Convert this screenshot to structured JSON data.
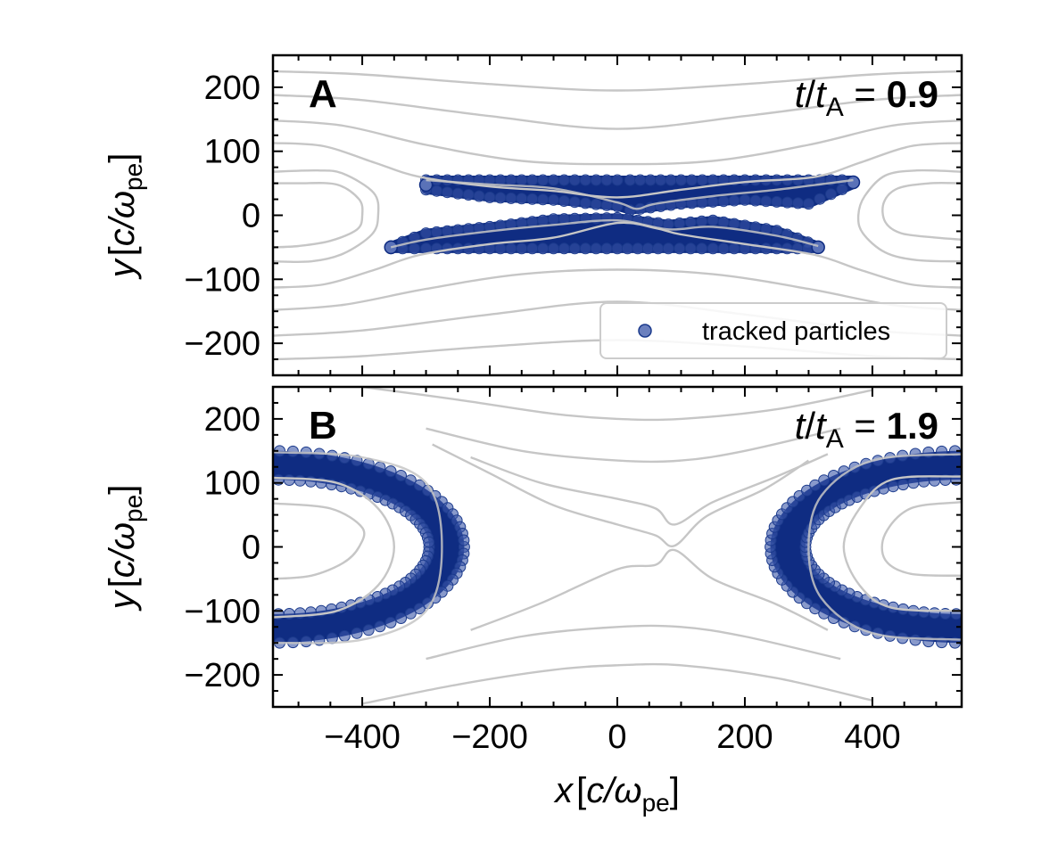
{
  "chart_data": [
    {
      "panel": "A",
      "type": "scatter",
      "xlim": [
        -540,
        540
      ],
      "ylim": [
        -250,
        250
      ],
      "xticks": [
        -400,
        -200,
        0,
        200,
        400
      ],
      "yticks": [
        200,
        100,
        0,
        -100,
        -200
      ],
      "ytick_labels": [
        "200",
        "100",
        "0",
        "−100",
        "−200"
      ],
      "show_x_tick_labels": false,
      "ylabel": {
        "var": "y",
        "open": "[",
        "num": "c/",
        "sym": "ω",
        "sub": "pe",
        "close": "]"
      },
      "time": {
        "t": "t",
        "slash": "/",
        "t2": "t",
        "sub": "A",
        "eq": " = ",
        "value": "0.9"
      },
      "legend": {
        "label": "tracked particles",
        "position": "lower right"
      },
      "series": [
        {
          "name": "tracked particles",
          "color": "#0f2c82",
          "bands": [
            {
              "x": [
                -300,
                -200,
                -100,
                0,
                20,
                100,
                200,
                300,
                370
              ],
              "y_top": [
                55,
                55,
                55,
                55,
                55,
                55,
                55,
                55,
                55
              ],
              "y_bottom": [
                40,
                28,
                24,
                14,
                8,
                18,
                24,
                18,
                48
              ]
            },
            {
              "x": [
                -355,
                -300,
                -200,
                -100,
                0,
                80,
                150,
                250,
                315
              ],
              "y_top": [
                -48,
                -28,
                -18,
                -6,
                -4,
                -14,
                -8,
                -24,
                -48
              ],
              "y_bottom": [
                -52,
                -52,
                -52,
                -52,
                -52,
                -52,
                -52,
                -52,
                -52
              ]
            }
          ]
        }
      ],
      "field_lines": {
        "color": "#c6c6c6",
        "open_top": [
          [
            [
              -540,
              225
            ],
            [
              -400,
              220
            ],
            [
              -200,
              205
            ],
            [
              0,
              195
            ],
            [
              200,
              205
            ],
            [
              400,
              220
            ],
            [
              540,
              225
            ]
          ],
          [
            [
              -540,
              188
            ],
            [
              -400,
              180
            ],
            [
              -200,
              155
            ],
            [
              0,
              135
            ],
            [
              200,
              155
            ],
            [
              400,
              180
            ],
            [
              540,
              188
            ]
          ],
          [
            [
              -540,
              148
            ],
            [
              -430,
              140
            ],
            [
              -300,
              110
            ],
            [
              -150,
              85
            ],
            [
              0,
              80
            ],
            [
              150,
              85
            ],
            [
              300,
              110
            ],
            [
              430,
              140
            ],
            [
              540,
              148
            ]
          ],
          [
            [
              -540,
              113
            ],
            [
              -460,
              108
            ],
            [
              -380,
              82
            ],
            [
              -310,
              60
            ],
            [
              -200,
              45
            ],
            [
              -100,
              38
            ],
            [
              0,
              28
            ],
            [
              100,
              40
            ],
            [
              200,
              52
            ],
            [
              310,
              60
            ],
            [
              380,
              82
            ],
            [
              460,
              108
            ],
            [
              540,
              113
            ]
          ]
        ],
        "open_bottom": [
          [
            [
              -540,
              -225
            ],
            [
              -400,
              -220
            ],
            [
              -200,
              -205
            ],
            [
              0,
              -195
            ],
            [
              200,
              -205
            ],
            [
              400,
              -220
            ],
            [
              540,
              -225
            ]
          ],
          [
            [
              -540,
              -188
            ],
            [
              -400,
              -180
            ],
            [
              -200,
              -155
            ],
            [
              0,
              -135
            ],
            [
              200,
              -155
            ],
            [
              400,
              -180
            ],
            [
              540,
              -188
            ]
          ],
          [
            [
              -540,
              -148
            ],
            [
              -430,
              -140
            ],
            [
              -300,
              -115
            ],
            [
              -150,
              -92
            ],
            [
              0,
              -85
            ],
            [
              150,
              -92
            ],
            [
              300,
              -115
            ],
            [
              430,
              -140
            ],
            [
              540,
              -148
            ]
          ],
          [
            [
              -540,
              -113
            ],
            [
              -460,
              -108
            ],
            [
              -380,
              -85
            ],
            [
              -310,
              -62
            ],
            [
              -200,
              -45
            ],
            [
              -100,
              -35
            ],
            [
              0,
              -12
            ],
            [
              60,
              -20
            ],
            [
              100,
              -30
            ],
            [
              200,
              -45
            ],
            [
              310,
              -62
            ],
            [
              380,
              -85
            ],
            [
              460,
              -108
            ],
            [
              540,
              -113
            ]
          ]
        ],
        "islands": [
          [
            [
              -540,
              50
            ],
            [
              -500,
              50
            ],
            [
              -440,
              48
            ],
            [
              -405,
              25
            ],
            [
              -400,
              0
            ],
            [
              -408,
              -22
            ],
            [
              -450,
              -40
            ],
            [
              -500,
              -48
            ],
            [
              -540,
              -50
            ]
          ],
          [
            [
              -540,
              68
            ],
            [
              -470,
              70
            ],
            [
              -430,
              65
            ],
            [
              -382,
              35
            ],
            [
              -375,
              0
            ],
            [
              -385,
              -30
            ],
            [
              -430,
              -60
            ],
            [
              -480,
              -72
            ],
            [
              -540,
              -72
            ]
          ],
          [
            [
              540,
              50
            ],
            [
              490,
              50
            ],
            [
              440,
              42
            ],
            [
              418,
              20
            ],
            [
              420,
              -10
            ],
            [
              445,
              -28
            ],
            [
              500,
              -35
            ],
            [
              540,
              -38
            ]
          ],
          [
            [
              540,
              68
            ],
            [
              470,
              70
            ],
            [
              420,
              62
            ],
            [
              388,
              30
            ],
            [
              378,
              0
            ],
            [
              385,
              -28
            ],
            [
              420,
              -58
            ],
            [
              470,
              -70
            ],
            [
              540,
              -72
            ]
          ]
        ],
        "separatrix": [
          [
            [
              -300,
              55
            ],
            [
              -200,
              48
            ],
            [
              -100,
              42
            ],
            [
              0,
              20
            ],
            [
              30,
              10
            ],
            [
              60,
              18
            ],
            [
              150,
              30
            ],
            [
              250,
              40
            ],
            [
              370,
              55
            ]
          ],
          [
            [
              -355,
              -50
            ],
            [
              -300,
              -38
            ],
            [
              -200,
              -25
            ],
            [
              -100,
              -15
            ],
            [
              0,
              -8
            ],
            [
              80,
              -22
            ],
            [
              150,
              -18
            ],
            [
              250,
              -32
            ],
            [
              315,
              -48
            ]
          ]
        ]
      }
    },
    {
      "panel": "B",
      "type": "scatter",
      "xlim": [
        -540,
        540
      ],
      "ylim": [
        -250,
        250
      ],
      "xticks": [
        -400,
        -200,
        0,
        200,
        400
      ],
      "xtick_labels": [
        "−400",
        "−200",
        "0",
        "200",
        "400"
      ],
      "yticks": [
        200,
        100,
        0,
        -100,
        -200
      ],
      "ytick_labels": [
        "200",
        "100",
        "0",
        "−100",
        "−200"
      ],
      "show_x_tick_labels": true,
      "xlabel": {
        "var": "x",
        "open": "[",
        "num": "c/",
        "sym": "ω",
        "sub": "pe",
        "close": "]"
      },
      "ylabel": {
        "var": "y",
        "open": "[",
        "num": "c/",
        "sym": "ω",
        "sub": "pe",
        "close": "]"
      },
      "time": {
        "t": "t",
        "slash": "/",
        "t2": "t",
        "sub": "A",
        "eq": " = ",
        "value": "1.9"
      },
      "series": [
        {
          "name": "tracked particles",
          "color": "#0f2c82",
          "ring_left": {
            "outer": {
              "cx": -540,
              "rx": 300,
              "ry": 150
            },
            "inner": {
              "cx": -540,
              "rx": 245,
              "ry": 105
            }
          },
          "ring_right": {
            "outer": {
              "cx": 540,
              "rx": 300,
              "ry": 150
            },
            "inner": {
              "cx": 540,
              "rx": 245,
              "ry": 105
            }
          }
        }
      ],
      "field_lines": {
        "color": "#c6c6c6",
        "open_top": [
          [
            [
              -400,
              250
            ],
            [
              -250,
              230
            ],
            [
              -100,
              208
            ],
            [
              0,
              200
            ],
            [
              100,
              200
            ],
            [
              250,
              215
            ],
            [
              400,
              245
            ]
          ],
          [
            [
              -300,
              185
            ],
            [
              -150,
              150
            ],
            [
              0,
              135
            ],
            [
              100,
              135
            ],
            [
              200,
              150
            ],
            [
              350,
              185
            ]
          ],
          [
            [
              -230,
              140
            ],
            [
              -120,
              100
            ],
            [
              0,
              75
            ],
            [
              60,
              60
            ],
            [
              90,
              35
            ],
            [
              150,
              70
            ],
            [
              250,
              110
            ],
            [
              330,
              145
            ]
          ],
          [
            [
              -290,
              160
            ],
            [
              -200,
              115
            ],
            [
              -100,
              65
            ],
            [
              0,
              35
            ],
            [
              60,
              18
            ],
            [
              90,
              2
            ],
            [
              140,
              48
            ],
            [
              230,
              90
            ],
            [
              300,
              135
            ]
          ]
        ],
        "open_bottom": [
          [
            [
              -400,
              -245
            ],
            [
              -250,
              -215
            ],
            [
              -100,
              -192
            ],
            [
              0,
              -185
            ],
            [
              100,
              -185
            ],
            [
              250,
              -205
            ],
            [
              400,
              -240
            ]
          ],
          [
            [
              -300,
              -175
            ],
            [
              -150,
              -140
            ],
            [
              0,
              -125
            ],
            [
              100,
              -125
            ],
            [
              200,
              -140
            ],
            [
              350,
              -175
            ]
          ],
          [
            [
              -230,
              -130
            ],
            [
              -120,
              -88
            ],
            [
              0,
              -35
            ],
            [
              60,
              -28
            ],
            [
              90,
              -5
            ],
            [
              150,
              -50
            ],
            [
              250,
              -90
            ],
            [
              330,
              -130
            ]
          ]
        ],
        "islands": [
          [
            [
              -540,
              68
            ],
            [
              -450,
              60
            ],
            [
              -400,
              30
            ],
            [
              -405,
              0
            ],
            [
              -430,
              -25
            ],
            [
              -480,
              -45
            ],
            [
              -540,
              -50
            ]
          ],
          [
            [
              -540,
              108
            ],
            [
              -440,
              100
            ],
            [
              -375,
              60
            ],
            [
              -350,
              0
            ],
            [
              -375,
              -60
            ],
            [
              -440,
              -100
            ],
            [
              -540,
              -110
            ]
          ],
          [
            [
              540,
              70
            ],
            [
              460,
              60
            ],
            [
              420,
              20
            ],
            [
              420,
              -20
            ],
            [
              460,
              -42
            ],
            [
              540,
              -45
            ]
          ],
          [
            [
              540,
              110
            ],
            [
              430,
              105
            ],
            [
              380,
              60
            ],
            [
              355,
              0
            ],
            [
              380,
              -60
            ],
            [
              430,
              -95
            ],
            [
              540,
              -100
            ]
          ]
        ],
        "separatrix": [
          [
            [
              -540,
              148
            ],
            [
              -400,
              140
            ],
            [
              -300,
              100
            ],
            [
              -275,
              0
            ],
            [
              -300,
              -100
            ],
            [
              -400,
              -145
            ],
            [
              -540,
              -150
            ]
          ],
          [
            [
              540,
              145
            ],
            [
              400,
              135
            ],
            [
              320,
              80
            ],
            [
              300,
              0
            ],
            [
              320,
              -80
            ],
            [
              400,
              -135
            ],
            [
              540,
              -145
            ]
          ]
        ]
      }
    }
  ]
}
